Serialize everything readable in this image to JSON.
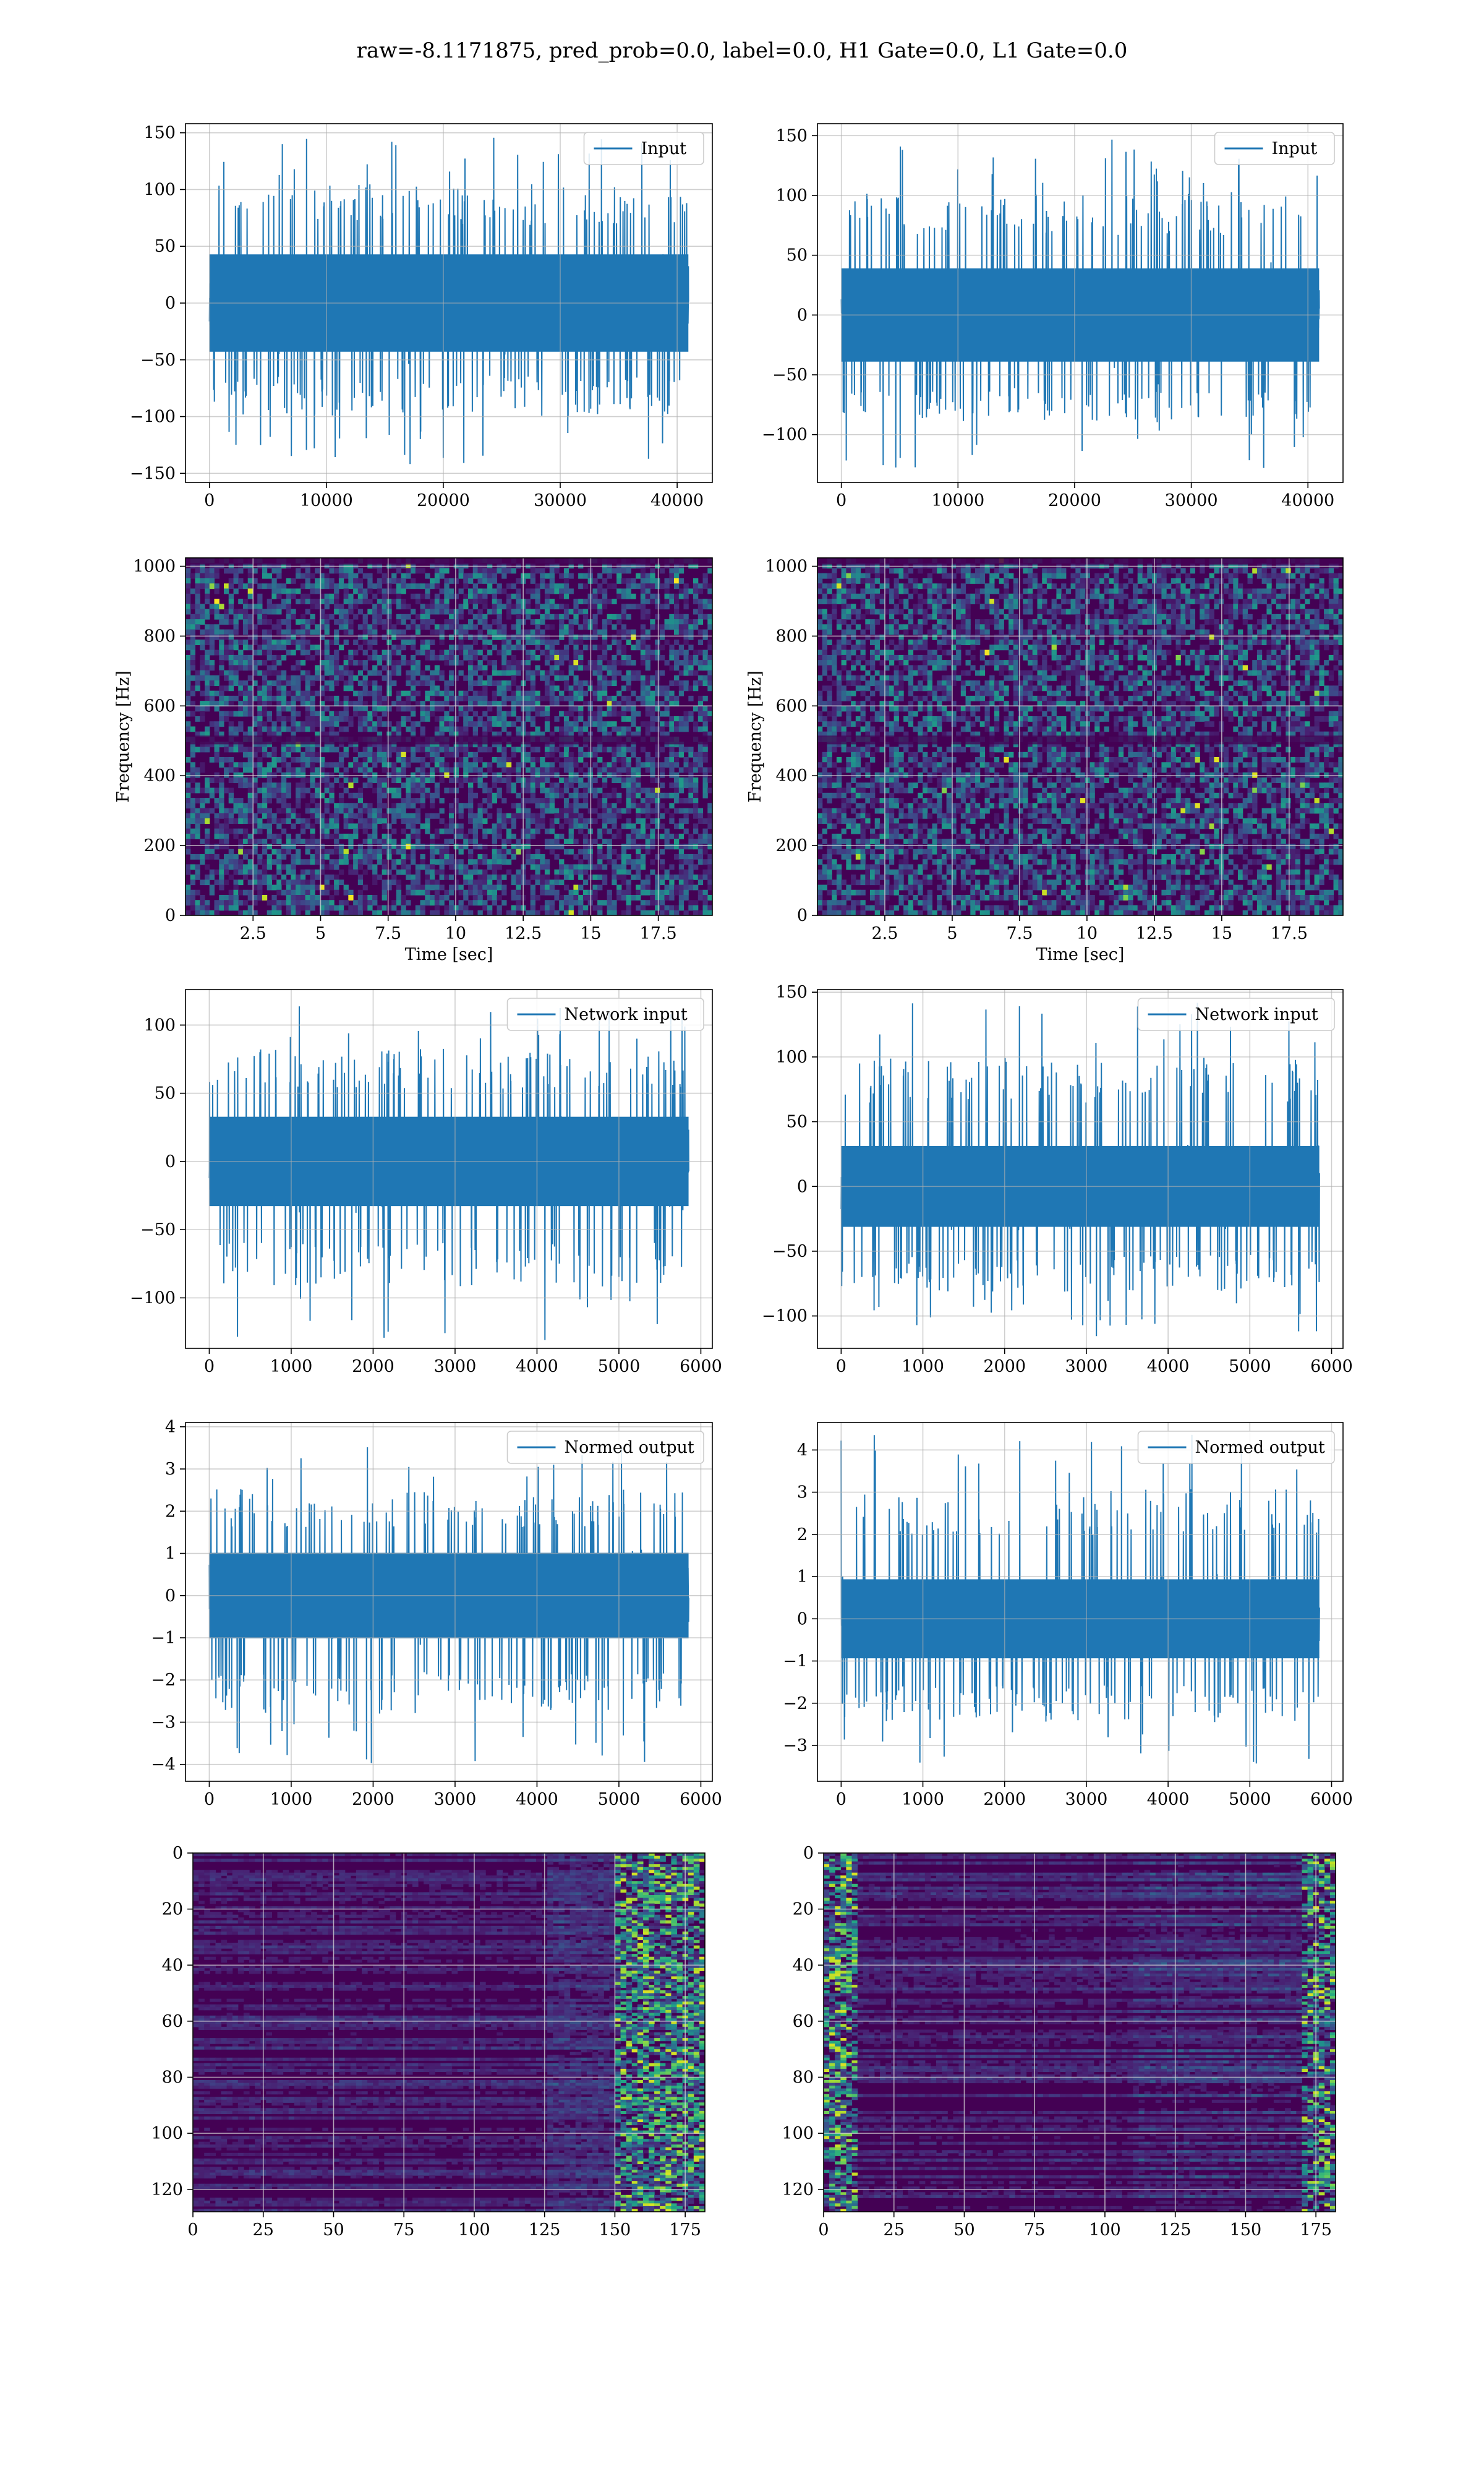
{
  "suptitle": "raw=-8.1171875, pred_prob=0.0, label=0.0, H1 Gate=0.0, L1 Gate=0.0",
  "colors": {
    "line": "#1f77b4",
    "grid": "#b0b0b0",
    "viridis_dark": "#440154",
    "viridis_mid": "#21918c",
    "viridis_bright": "#fde725"
  },
  "chart_data": [
    {
      "type": "line",
      "panel": "row1-left",
      "legend": "Input",
      "legend_placement": "top-right",
      "x_range": [
        0,
        40960
      ],
      "xlim": [
        -2048,
        43008
      ],
      "ylim": [
        -158,
        158
      ],
      "xticks": [
        0,
        10000,
        20000,
        30000,
        40000
      ],
      "yticks": [
        -150,
        -100,
        -50,
        0,
        50,
        100,
        150
      ],
      "amplitude": {
        "core_p99": 55,
        "spike_max": 150,
        "spike_min": -142
      },
      "grid": true
    },
    {
      "type": "line",
      "panel": "row1-right",
      "legend": "Input",
      "legend_placement": "top-right",
      "x_range": [
        0,
        40960
      ],
      "xlim": [
        -2048,
        43008
      ],
      "ylim": [
        -140,
        160
      ],
      "xticks": [
        0,
        10000,
        20000,
        30000,
        40000
      ],
      "yticks": [
        -100,
        -50,
        0,
        50,
        100,
        150
      ],
      "amplitude": {
        "core_p99": 50,
        "spike_max": 147,
        "spike_min": -128
      },
      "grid": true
    },
    {
      "type": "heatmap",
      "panel": "row2-left",
      "xlabel": "Time [sec]",
      "ylabel": "Frequency [Hz]",
      "xlim": [
        0,
        19.5
      ],
      "ylim": [
        0,
        1024
      ],
      "xticks": [
        2.5,
        5.0,
        7.5,
        10.0,
        12.5,
        15.0,
        17.5
      ],
      "yticks": [
        0,
        200,
        400,
        600,
        800,
        1000
      ],
      "colormap": "viridis",
      "grid": true
    },
    {
      "type": "heatmap",
      "panel": "row2-right",
      "xlabel": "Time [sec]",
      "ylabel": "Frequency [Hz]",
      "xlim": [
        0,
        19.5
      ],
      "ylim": [
        0,
        1024
      ],
      "xticks": [
        2.5,
        5.0,
        7.5,
        10.0,
        12.5,
        15.0,
        17.5
      ],
      "yticks": [
        0,
        200,
        400,
        600,
        800,
        1000
      ],
      "colormap": "viridis",
      "grid": true
    },
    {
      "type": "line",
      "panel": "row3-left",
      "legend": "Network input",
      "legend_placement": "top-right",
      "x_range": [
        0,
        5850
      ],
      "xlim": [
        -290,
        6140
      ],
      "ylim": [
        -137,
        126
      ],
      "xticks": [
        0,
        1000,
        2000,
        3000,
        4000,
        5000,
        6000
      ],
      "yticks": [
        -100,
        -50,
        0,
        50,
        100
      ],
      "amplitude": {
        "core_p99": 42,
        "spike_max": 118,
        "spike_min": -132
      },
      "grid": true
    },
    {
      "type": "line",
      "panel": "row3-right",
      "legend": "Network input",
      "legend_placement": "top-right",
      "x_range": [
        0,
        5850
      ],
      "xlim": [
        -290,
        6140
      ],
      "ylim": [
        -125,
        152
      ],
      "xticks": [
        0,
        1000,
        2000,
        3000,
        4000,
        5000,
        6000
      ],
      "yticks": [
        -100,
        -50,
        0,
        50,
        100,
        150
      ],
      "amplitude": {
        "core_p99": 40,
        "spike_max": 144,
        "spike_min": -116
      },
      "grid": true
    },
    {
      "type": "line",
      "panel": "row4-left",
      "legend": "Normed output",
      "legend_placement": "top-right",
      "x_range": [
        0,
        5850
      ],
      "xlim": [
        -290,
        6140
      ],
      "ylim": [
        -4.4,
        4.1
      ],
      "xticks": [
        0,
        1000,
        2000,
        3000,
        4000,
        5000,
        6000
      ],
      "yticks": [
        -4,
        -3,
        -2,
        -1,
        0,
        1,
        2,
        3,
        4
      ],
      "amplitude": {
        "core_p99": 1.3,
        "spike_max": 3.6,
        "spike_min": -4.0
      },
      "grid": true
    },
    {
      "type": "line",
      "panel": "row4-right",
      "legend": "Normed output",
      "legend_placement": "top-right",
      "x_range": [
        0,
        5850
      ],
      "xlim": [
        -290,
        6140
      ],
      "ylim": [
        -3.85,
        4.65
      ],
      "xticks": [
        0,
        1000,
        2000,
        3000,
        4000,
        5000,
        6000
      ],
      "yticks": [
        -3,
        -2,
        -1,
        0,
        1,
        2,
        3,
        4
      ],
      "amplitude": {
        "core_p99": 1.2,
        "spike_max": 4.4,
        "spike_min": -3.5
      },
      "grid": true
    },
    {
      "type": "heatmap",
      "panel": "row5-left",
      "xlim": [
        0,
        182
      ],
      "ylim": [
        128,
        0
      ],
      "xticks": [
        0,
        25,
        50,
        75,
        100,
        125,
        150,
        175
      ],
      "yticks": [
        0,
        20,
        40,
        60,
        80,
        100,
        120
      ],
      "colormap": "viridis",
      "bright_region": "x >= 150",
      "grid": true
    },
    {
      "type": "heatmap",
      "panel": "row5-right",
      "xlim": [
        0,
        182
      ],
      "ylim": [
        128,
        0
      ],
      "xticks": [
        0,
        25,
        50,
        75,
        100,
        125,
        150,
        175
      ],
      "yticks": [
        0,
        20,
        40,
        60,
        80,
        100,
        120
      ],
      "colormap": "viridis",
      "bright_region": "x < 12 and x >= 170",
      "grid": true
    }
  ]
}
